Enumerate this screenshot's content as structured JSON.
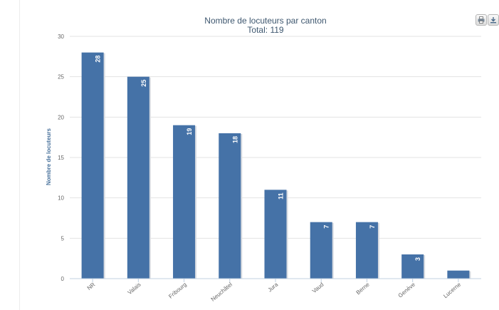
{
  "chart_data": {
    "type": "bar",
    "title": "Nombre de locuteurs par canton",
    "subtitle": "Total: 119",
    "ylabel": "Nombre de locuteurs",
    "xlabel": "",
    "categories": [
      "NR",
      "Valais",
      "Fribourg",
      "Neuchâtel",
      "Jura",
      "Vaud",
      "Berne",
      "Genève",
      "Lucerne"
    ],
    "values": [
      28,
      25,
      19,
      18,
      11,
      7,
      7,
      3,
      1
    ],
    "data_labels": [
      "28",
      "25",
      "19",
      "18",
      "11",
      "7",
      "7",
      "3",
      ""
    ],
    "ylim": [
      0,
      30
    ],
    "yticks": [
      0,
      5,
      10,
      15,
      20,
      25,
      30
    ],
    "grid": true,
    "legend": false,
    "bar_color": "#4572a7"
  },
  "toolbar": {
    "print_icon": "printer-icon",
    "export_icon": "download-icon"
  }
}
